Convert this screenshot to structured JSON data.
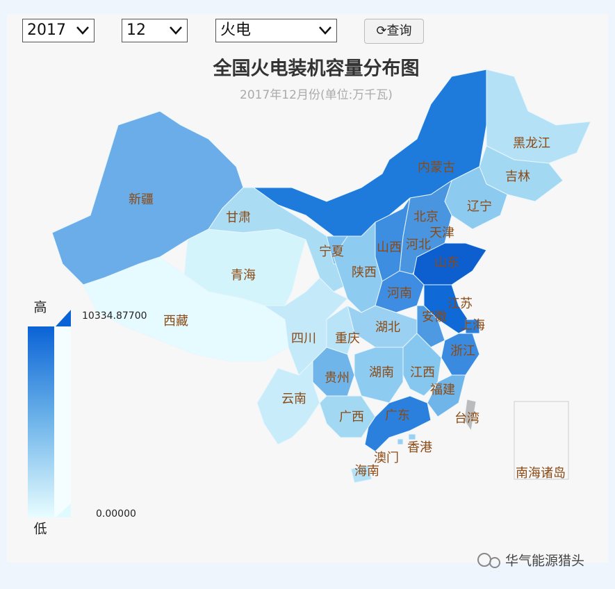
{
  "controls": {
    "year": "2017",
    "month": "12",
    "kind": "火电",
    "button": "查询"
  },
  "title": "全国火电装机容量分布图",
  "subtitle": "2017年12月份(单位:万千瓦)",
  "legend": {
    "high": "高",
    "low": "低",
    "max": "10334.87700",
    "min": "0.00000"
  },
  "provinces": [
    {
      "name": "新疆",
      "color": "#6aade8"
    },
    {
      "name": "西藏",
      "color": "#e6fbff"
    },
    {
      "name": "青海",
      "color": "#d4f4fb"
    },
    {
      "name": "甘肃",
      "color": "#aadcf4"
    },
    {
      "name": "内蒙古",
      "color": "#1e7bdb"
    },
    {
      "name": "黑龙江",
      "color": "#b5e1f7"
    },
    {
      "name": "吉林",
      "color": "#a3d8f3"
    },
    {
      "name": "辽宁",
      "color": "#8ccaf0"
    },
    {
      "name": "北京",
      "color": "#7dbfee"
    },
    {
      "name": "天津",
      "color": "#6fb5ea"
    },
    {
      "name": "河北",
      "color": "#4a95e0"
    },
    {
      "name": "山西",
      "color": "#3d8de0"
    },
    {
      "name": "宁夏",
      "color": "#7dbfee"
    },
    {
      "name": "陕西",
      "color": "#8ecbf0"
    },
    {
      "name": "山东",
      "color": "#0d5fcf"
    },
    {
      "name": "河南",
      "color": "#3e8de2"
    },
    {
      "name": "江苏",
      "color": "#0f6ad8"
    },
    {
      "name": "安徽",
      "color": "#4d9ae3"
    },
    {
      "name": "上海",
      "color": "#2a7fdd"
    },
    {
      "name": "浙江",
      "color": "#3a8be0"
    },
    {
      "name": "湖北",
      "color": "#9ad0f1"
    },
    {
      "name": "重庆",
      "color": "#b9e3f7"
    },
    {
      "name": "四川",
      "color": "#c4e9f9"
    },
    {
      "name": "湖南",
      "color": "#8ecbf0"
    },
    {
      "name": "江西",
      "color": "#86c7ef"
    },
    {
      "name": "福建",
      "color": "#6fb5ea"
    },
    {
      "name": "贵州",
      "color": "#6fb5ea"
    },
    {
      "name": "云南",
      "color": "#c8ecf9"
    },
    {
      "name": "广西",
      "color": "#a3d8f3"
    },
    {
      "name": "广东",
      "color": "#2b80de"
    },
    {
      "name": "海南",
      "color": "#b5e1f7"
    },
    {
      "name": "台湾",
      "color": "#bbbbbb"
    },
    {
      "name": "香港",
      "color": "#9ad0f1"
    },
    {
      "name": "澳门",
      "color": "#9ad0f1"
    }
  ],
  "inset_label": "南海诸岛",
  "watermark": "华气能源猎头"
}
